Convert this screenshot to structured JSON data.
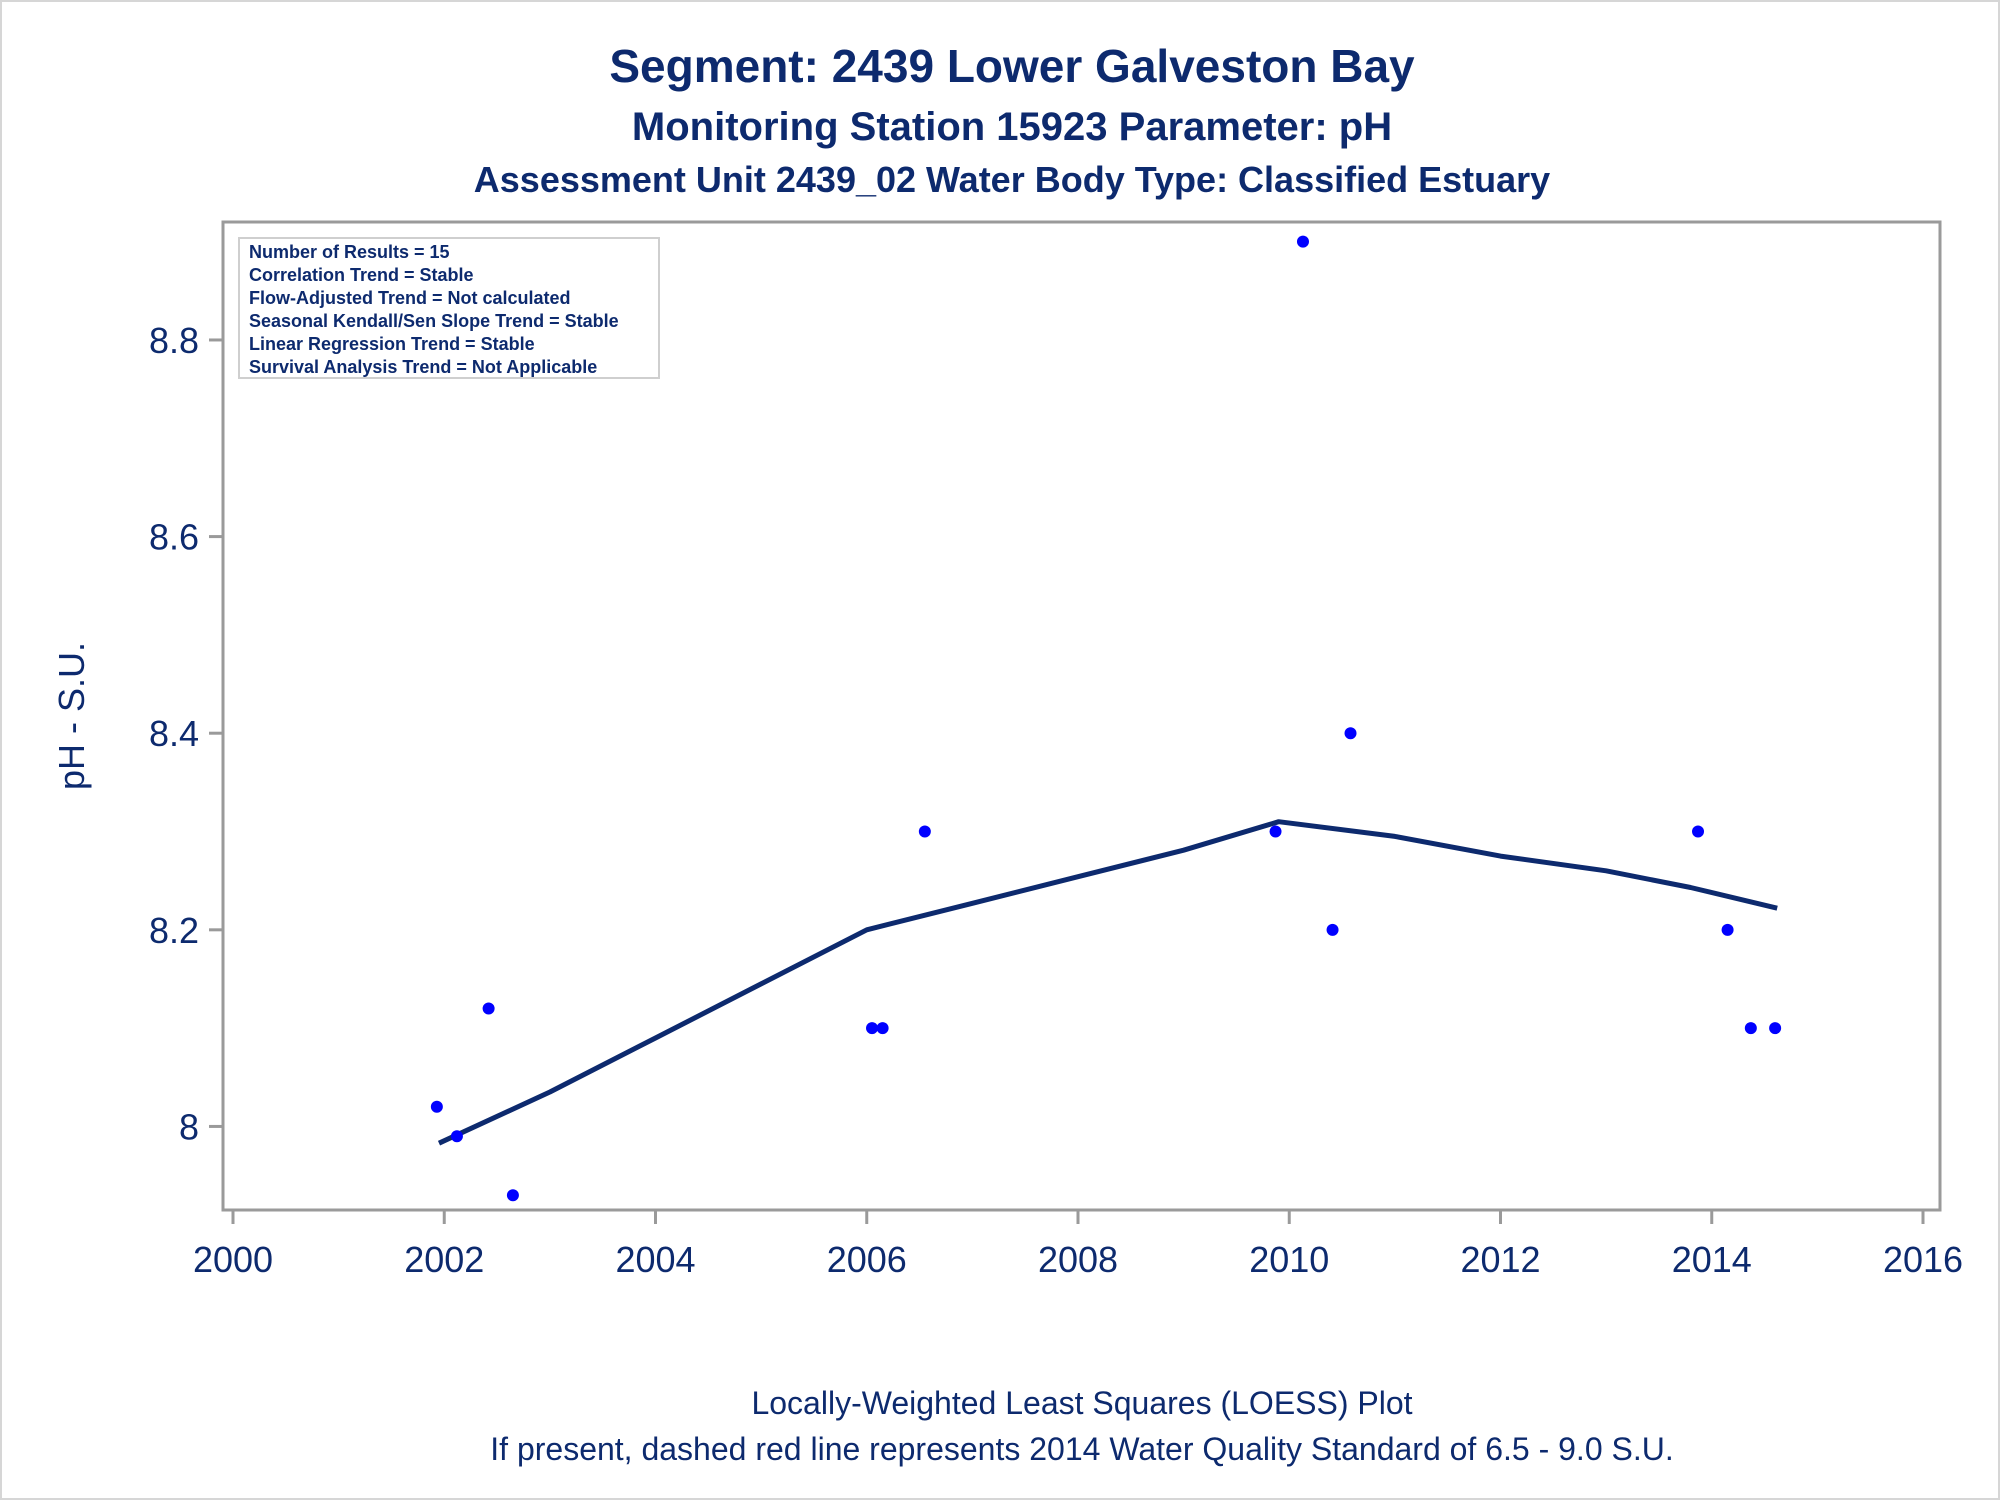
{
  "chart_data": {
    "type": "scatter",
    "title": "Segment: 2439  Lower Galveston Bay",
    "subtitle1": "Monitoring Station 15923 Parameter: pH",
    "subtitle2": "Assessment Unit 2439_02   Water Body Type: Classified Estuary",
    "ylabel": "pH - S.U.",
    "xlim": [
      2000,
      2016
    ],
    "ylim": [
      7.915,
      8.92
    ],
    "x_ticks": [
      2000,
      2002,
      2004,
      2006,
      2008,
      2010,
      2012,
      2014,
      2016
    ],
    "y_ticks": [
      8.0,
      8.2,
      8.4,
      8.6,
      8.8
    ],
    "y_tick_labels": [
      "8",
      "8.2",
      "8.4",
      "8.6",
      "8.8"
    ],
    "stats": [
      "Number of Results = 15",
      "Correlation Trend = Stable",
      "Flow-Adjusted Trend = Not calculated",
      "Seasonal Kendall/Sen Slope Trend = Stable",
      "Linear Regression Trend = Stable",
      "Survival Analysis Trend = Not Applicable"
    ],
    "points": [
      {
        "x": 2001.93,
        "y": 8.02
      },
      {
        "x": 2002.12,
        "y": 7.99
      },
      {
        "x": 2002.42,
        "y": 8.12
      },
      {
        "x": 2002.65,
        "y": 7.93
      },
      {
        "x": 2006.05,
        "y": 8.1
      },
      {
        "x": 2006.15,
        "y": 8.1
      },
      {
        "x": 2006.55,
        "y": 8.3
      },
      {
        "x": 2009.87,
        "y": 8.3
      },
      {
        "x": 2010.13,
        "y": 8.9
      },
      {
        "x": 2010.41,
        "y": 8.2
      },
      {
        "x": 2010.58,
        "y": 8.4
      },
      {
        "x": 2013.87,
        "y": 8.3
      },
      {
        "x": 2014.15,
        "y": 8.2
      },
      {
        "x": 2014.37,
        "y": 8.1
      },
      {
        "x": 2014.6,
        "y": 8.1
      }
    ],
    "loess": [
      {
        "x": 2001.95,
        "y": 7.983
      },
      {
        "x": 2003.0,
        "y": 8.035
      },
      {
        "x": 2004.0,
        "y": 8.09
      },
      {
        "x": 2005.0,
        "y": 8.145
      },
      {
        "x": 2006.0,
        "y": 8.2
      },
      {
        "x": 2007.0,
        "y": 8.227
      },
      {
        "x": 2008.0,
        "y": 8.254
      },
      {
        "x": 2009.0,
        "y": 8.281
      },
      {
        "x": 2009.9,
        "y": 8.31
      },
      {
        "x": 2011.0,
        "y": 8.295
      },
      {
        "x": 2012.0,
        "y": 8.275
      },
      {
        "x": 2013.0,
        "y": 8.26
      },
      {
        "x": 2013.8,
        "y": 8.243
      },
      {
        "x": 2014.62,
        "y": 8.222
      }
    ],
    "colors": {
      "points": "#0000ff",
      "loess": "#0d2a6e",
      "text": "#0d2a6e",
      "axis": "#9a9a9a"
    }
  },
  "footer": {
    "line1": "Locally-Weighted Least Squares (LOESS) Plot",
    "line2": "If present, dashed red line represents 2014 Water Quality Standard of 6.5 - 9.0 S.U."
  }
}
